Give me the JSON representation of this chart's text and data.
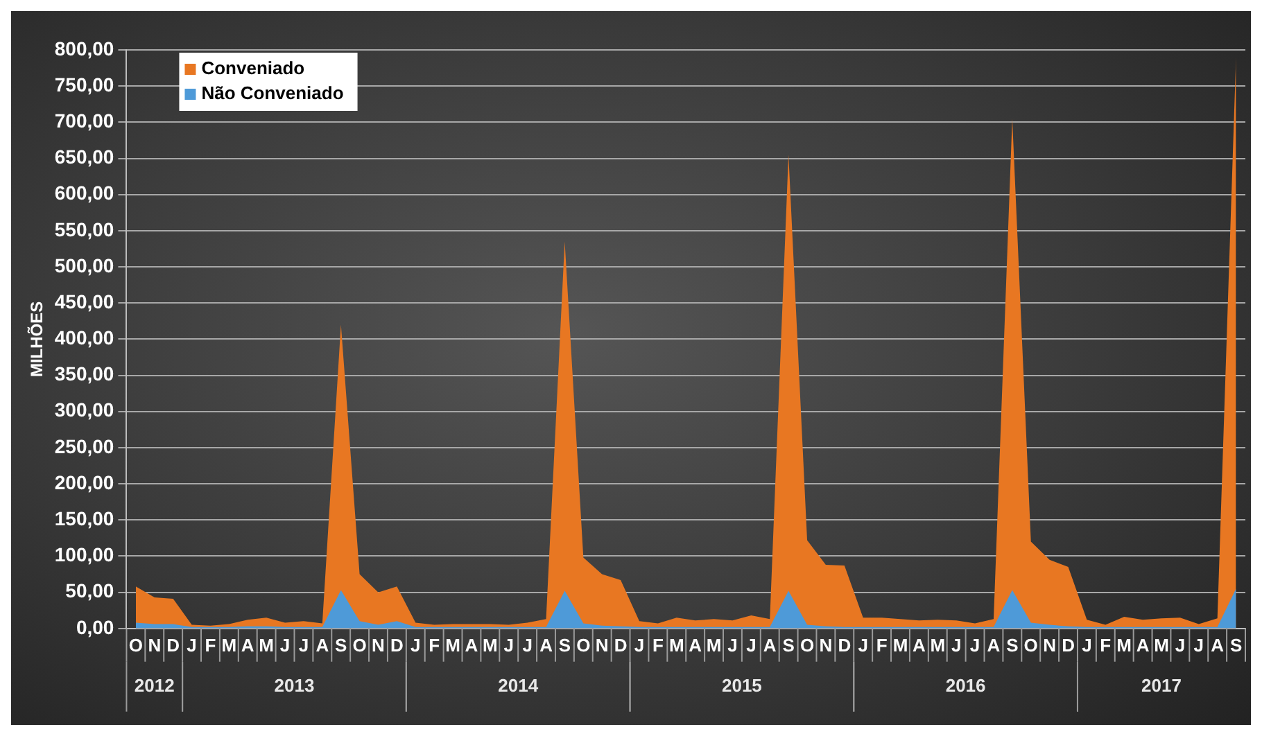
{
  "chart_data": {
    "type": "area",
    "ylabel": "MILHÕES",
    "categories": [
      "O",
      "N",
      "D",
      "J",
      "F",
      "M",
      "A",
      "M",
      "J",
      "J",
      "A",
      "S",
      "O",
      "N",
      "D",
      "J",
      "F",
      "M",
      "A",
      "M",
      "J",
      "J",
      "A",
      "S",
      "O",
      "N",
      "D",
      "J",
      "F",
      "M",
      "A",
      "M",
      "J",
      "J",
      "A",
      "S",
      "O",
      "N",
      "D",
      "J",
      "F",
      "M",
      "A",
      "M",
      "J",
      "J",
      "A",
      "S",
      "O",
      "N",
      "D",
      "J",
      "F",
      "M",
      "A",
      "M",
      "J",
      "J",
      "A",
      "S"
    ],
    "annotations": [
      "2012",
      "2013",
      "2014",
      "2015",
      "2016",
      "2017"
    ],
    "series": [
      {
        "name": "Conveniado",
        "color": "#e87722",
        "values": [
          58,
          43,
          41,
          5,
          4,
          6,
          12,
          15,
          8,
          10,
          7,
          420,
          75,
          50,
          58,
          8,
          5,
          6,
          6,
          6,
          5,
          8,
          13,
          535,
          98,
          75,
          67,
          10,
          7,
          15,
          11,
          13,
          11,
          18,
          13,
          655,
          122,
          88,
          87,
          15,
          15,
          13,
          11,
          12,
          11,
          7,
          13,
          705,
          120,
          95,
          85,
          12,
          5,
          16,
          12,
          14,
          15,
          6,
          14,
          790
        ]
      },
      {
        "name": "Não Conveniado",
        "color": "#4e9ad8",
        "values": [
          8,
          6,
          6,
          2,
          2,
          2,
          3,
          3,
          2,
          2,
          2,
          53,
          10,
          5,
          10,
          2,
          2,
          2,
          2,
          2,
          2,
          2,
          2,
          52,
          7,
          4,
          3,
          2,
          2,
          2,
          2,
          2,
          2,
          2,
          2,
          52,
          5,
          3,
          2,
          2,
          2,
          2,
          2,
          2,
          2,
          2,
          2,
          53,
          8,
          5,
          3,
          2,
          2,
          2,
          2,
          2,
          2,
          2,
          2,
          55
        ]
      }
    ],
    "ylim": [
      0,
      800
    ],
    "yticks": [
      {
        "value": 0,
        "label": "0,00"
      },
      {
        "value": 50,
        "label": "50,00"
      },
      {
        "value": 100,
        "label": "100,00"
      },
      {
        "value": 150,
        "label": "150,00"
      },
      {
        "value": 200,
        "label": "200,00"
      },
      {
        "value": 250,
        "label": "250,00"
      },
      {
        "value": 300,
        "label": "300,00"
      },
      {
        "value": 350,
        "label": "350,00"
      },
      {
        "value": 400,
        "label": "400,00"
      },
      {
        "value": 450,
        "label": "450,00"
      },
      {
        "value": 500,
        "label": "500,00"
      },
      {
        "value": 550,
        "label": "550,00"
      },
      {
        "value": 600,
        "label": "600,00"
      },
      {
        "value": 650,
        "label": "650,00"
      },
      {
        "value": 700,
        "label": "700,00"
      },
      {
        "value": 750,
        "label": "750,00"
      },
      {
        "value": 800,
        "label": "800,00"
      }
    ],
    "grid": "y",
    "legend": "top left",
    "marker": "none"
  }
}
